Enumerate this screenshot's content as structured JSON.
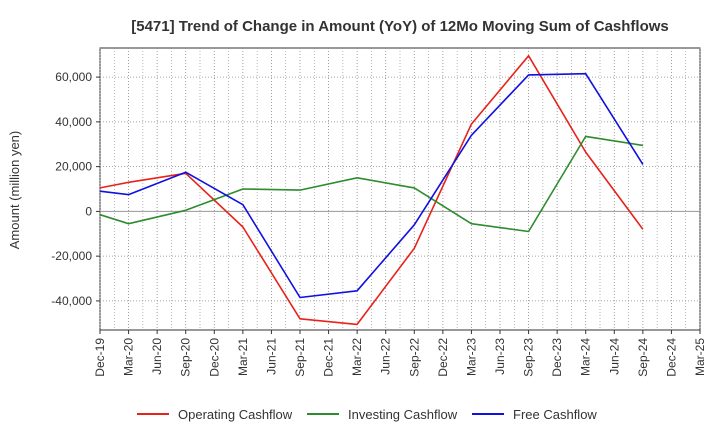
{
  "chart_data": {
    "type": "line",
    "title": "[5471]  Trend of Change in Amount (YoY) of 12Mo Moving Sum of Cashflows",
    "xlabel": "",
    "ylabel": "Amount (million yen)",
    "ylim": [
      -53000,
      73000
    ],
    "y_ticks": [
      -40000,
      -20000,
      0,
      20000,
      40000,
      60000
    ],
    "y_tick_labels": [
      "-40,000",
      "-20,000",
      "0",
      "20,000",
      "40,000",
      "60,000"
    ],
    "categories": [
      "Dec-19",
      "Mar-20",
      "Jun-20",
      "Sep-20",
      "Dec-20",
      "Mar-21",
      "Jun-21",
      "Sep-21",
      "Dec-21",
      "Mar-22",
      "Jun-22",
      "Sep-22",
      "Dec-22",
      "Mar-23",
      "Jun-23",
      "Sep-23",
      "Dec-23",
      "Mar-24",
      "Jun-24",
      "Sep-24",
      "Dec-24",
      "Mar-25"
    ],
    "grid": true,
    "legend_position": "bottom",
    "series": [
      {
        "name": "Operating Cashflow",
        "color": "#e8221b",
        "values": [
          10500,
          13000,
          null,
          17000,
          null,
          -7000,
          null,
          -48000,
          null,
          -50500,
          null,
          -16500,
          null,
          39000,
          null,
          69500,
          null,
          26500,
          null,
          -8000,
          null,
          null
        ]
      },
      {
        "name": "Investing Cashflow",
        "color": "#2e8b2e",
        "values": [
          -1500,
          -5500,
          null,
          500,
          null,
          10000,
          null,
          9500,
          null,
          15000,
          null,
          10500,
          null,
          -5500,
          null,
          -9000,
          null,
          33500,
          null,
          29500,
          null,
          null
        ]
      },
      {
        "name": "Free Cashflow",
        "color": "#1010e0",
        "values": [
          9000,
          7500,
          null,
          17500,
          null,
          3000,
          null,
          -38500,
          null,
          -35500,
          null,
          -6000,
          null,
          34000,
          null,
          61000,
          null,
          61500,
          null,
          21000,
          null,
          null
        ]
      }
    ]
  }
}
